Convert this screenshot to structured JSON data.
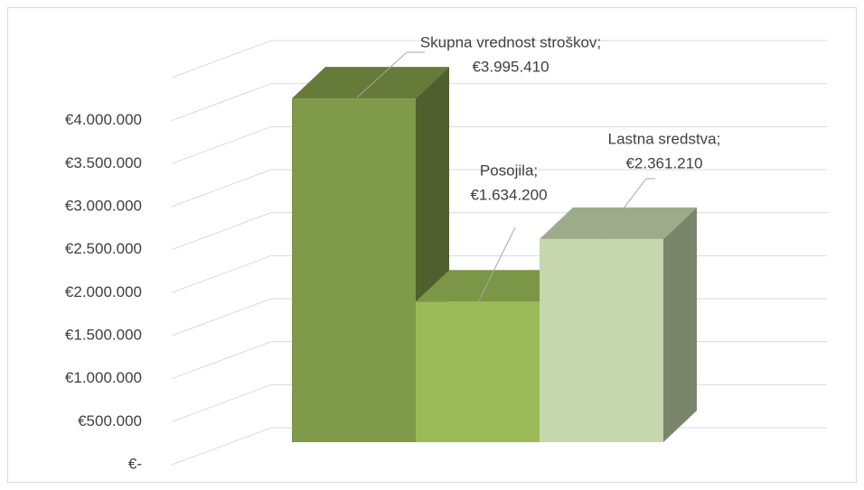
{
  "chart_data": {
    "type": "bar3d",
    "categories": [
      "Skupna vrednost stroškov;",
      "Posojila;",
      "Lastna sredstva;"
    ],
    "values": [
      3995410,
      1634200,
      2361210
    ],
    "value_labels": [
      "€3.995.410",
      "€1.634.200",
      "€2.361.210"
    ],
    "colors": [
      "#7f9a48",
      "#9bbb59",
      "#c6d6ad"
    ],
    "ylim": [
      0,
      4500000
    ],
    "yticks": [
      {
        "value": 0,
        "label": "€-"
      },
      {
        "value": 500000,
        "label": "€500.000"
      },
      {
        "value": 1000000,
        "label": "€1.000.000"
      },
      {
        "value": 1500000,
        "label": "€1.500.000"
      },
      {
        "value": 2000000,
        "label": "€2.000.000"
      },
      {
        "value": 2500000,
        "label": "€2.500.000"
      },
      {
        "value": 3000000,
        "label": "€3.000.000"
      },
      {
        "value": 3500000,
        "label": "€3.500.000"
      },
      {
        "value": 4000000,
        "label": "€4.000.000"
      }
    ],
    "grid": true
  }
}
